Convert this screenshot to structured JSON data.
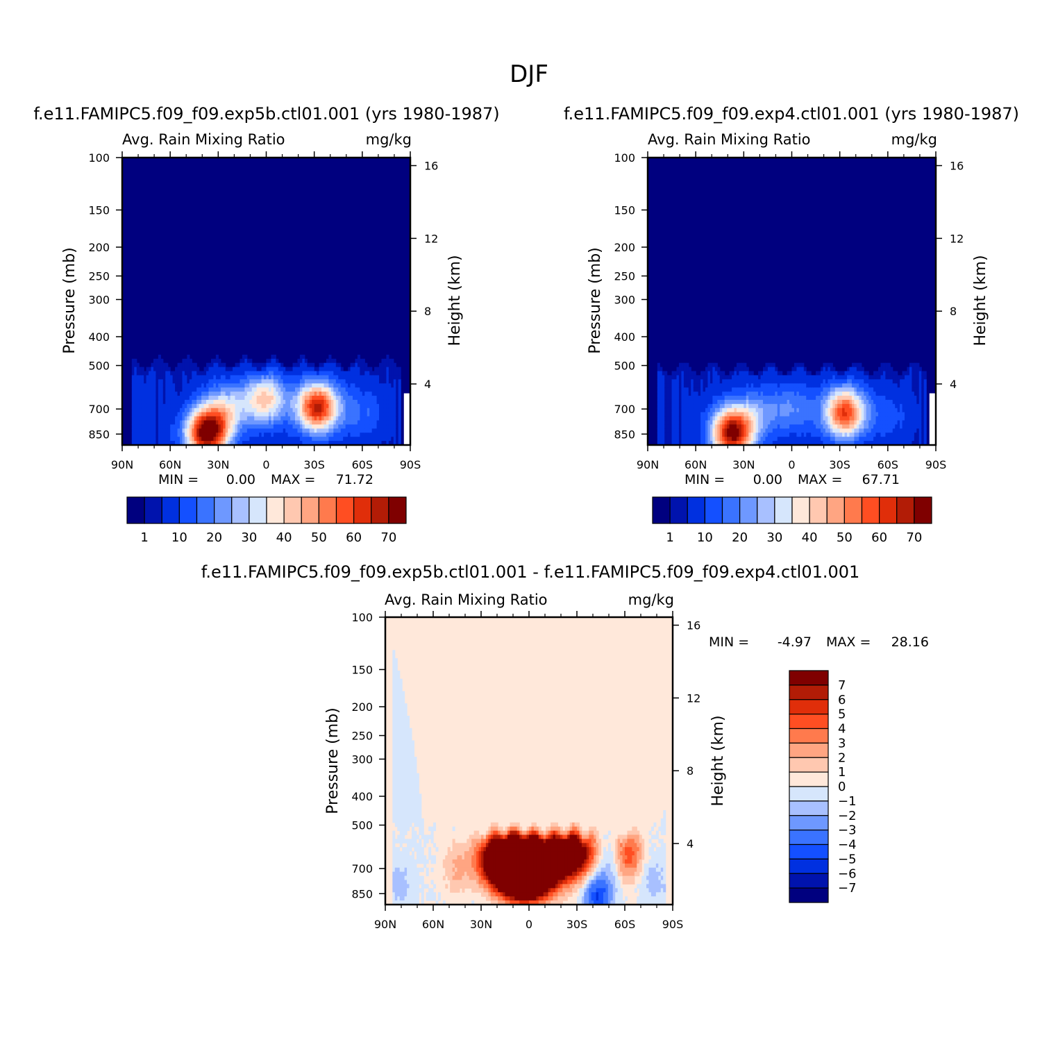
{
  "figure_title": "DJF",
  "chart_data": [
    {
      "type": "heatmap",
      "case_title": "f.e11.FAMIPC5.f09_f09.exp5b.ctl01.001 (yrs 1980-1987)",
      "variable": "Avg. Rain Mixing Ratio",
      "units": "mg/kg",
      "ylabel": "Pressure (mb)",
      "ylabel_right": "Height (km)",
      "x_ticks": [
        "90N",
        "60N",
        "30N",
        "0",
        "30S",
        "60S",
        "90S"
      ],
      "p_ticks": [
        100,
        150,
        200,
        250,
        300,
        400,
        500,
        700,
        850
      ],
      "z_ticks": [
        16,
        12,
        8,
        4
      ],
      "xlim": [
        90,
        -90
      ],
      "ylim_mb": [
        100,
        925
      ],
      "y_scale": "log",
      "stats": {
        "min_label": "MIN =",
        "min": "0.00",
        "max_label": "MAX =",
        "max": "71.72"
      },
      "contour_levels": [
        1,
        5,
        10,
        15,
        20,
        25,
        30,
        35,
        40,
        45,
        50,
        55,
        60,
        65,
        70
      ],
      "colorbar_labels": [
        "1",
        "10",
        "20",
        "30",
        "40",
        "50",
        "60",
        "70"
      ],
      "cloud_top_mb": 490,
      "features": [
        {
          "lat": 37,
          "p": 840,
          "peak": 71.7
        },
        {
          "lat": -32,
          "p": 690,
          "peak": 62
        },
        {
          "lat": 1,
          "p": 650,
          "peak": 38
        },
        {
          "lat": 25,
          "p": 700,
          "peak": 25
        },
        {
          "lat": -60,
          "p": 720,
          "peak": 10
        }
      ]
    },
    {
      "type": "heatmap",
      "case_title": "f.e11.FAMIPC5.f09_f09.exp4.ctl01.001 (yrs 1980-1987)",
      "variable": "Avg. Rain Mixing Ratio",
      "units": "mg/kg",
      "ylabel": "Pressure (mb)",
      "ylabel_right": "Height (km)",
      "x_ticks": [
        "90N",
        "60N",
        "30N",
        "0",
        "30S",
        "60S",
        "90S"
      ],
      "p_ticks": [
        100,
        150,
        200,
        250,
        300,
        400,
        500,
        700,
        850
      ],
      "z_ticks": [
        16,
        12,
        8,
        4
      ],
      "xlim": [
        90,
        -90
      ],
      "ylim_mb": [
        100,
        925
      ],
      "y_scale": "log",
      "stats": {
        "min_label": "MIN =",
        "min": "0.00",
        "max_label": "MAX =",
        "max": "67.71"
      },
      "contour_levels": [
        1,
        5,
        10,
        15,
        20,
        25,
        30,
        35,
        40,
        45,
        50,
        55,
        60,
        65,
        70
      ],
      "colorbar_labels": [
        "1",
        "10",
        "20",
        "30",
        "40",
        "50",
        "60",
        "70"
      ],
      "cloud_top_mb": 510,
      "features": [
        {
          "lat": 37,
          "p": 840,
          "peak": 67.7
        },
        {
          "lat": -33,
          "p": 720,
          "peak": 55
        },
        {
          "lat": 0,
          "p": 700,
          "peak": 15
        },
        {
          "lat": 22,
          "p": 720,
          "peak": 15
        },
        {
          "lat": -60,
          "p": 740,
          "peak": 8
        }
      ]
    },
    {
      "type": "heatmap",
      "case_title": "f.e11.FAMIPC5.f09_f09.exp5b.ctl01.001 - f.e11.FAMIPC5.f09_f09.exp4.ctl01.001",
      "variable": "Avg. Rain Mixing Ratio",
      "units": "mg/kg",
      "ylabel": "Pressure (mb)",
      "ylabel_right": "Height (km)",
      "x_ticks": [
        "90N",
        "60N",
        "30N",
        "0",
        "30S",
        "60S",
        "90S"
      ],
      "p_ticks": [
        100,
        150,
        200,
        250,
        300,
        400,
        500,
        700,
        850
      ],
      "z_ticks": [
        16,
        12,
        8,
        4
      ],
      "xlim": [
        90,
        -90
      ],
      "ylim_mb": [
        100,
        925
      ],
      "y_scale": "log",
      "stats": {
        "min_label": "MIN =",
        "min": "-4.97",
        "max_label": "MAX =",
        "max": "28.16"
      },
      "contour_levels": [
        -7,
        -6,
        -5,
        -4,
        -3,
        -2,
        -1,
        0,
        1,
        2,
        3,
        4,
        5,
        6,
        7
      ],
      "colorbar_labels": [
        "7",
        "6",
        "5",
        "4",
        "3",
        "2",
        "1",
        "0",
        "-1",
        "-2",
        "-3",
        "-4",
        "-5",
        "-6",
        "-7"
      ],
      "features": [
        {
          "lat": 2,
          "p": 700,
          "peak": 28.2
        },
        {
          "lat": 15,
          "p": 640,
          "peak": 12
        },
        {
          "lat": -25,
          "p": 620,
          "peak": 12
        },
        {
          "lat": -62,
          "p": 620,
          "peak": 5
        },
        {
          "lat": 45,
          "p": 700,
          "peak": 2
        },
        {
          "lat": -43,
          "p": 860,
          "peak": -5.0
        },
        {
          "lat": -50,
          "p": 640,
          "peak": -2
        },
        {
          "lat": 82,
          "p": 780,
          "peak": -1.5
        },
        {
          "lat": -78,
          "p": 770,
          "peak": -1.5
        }
      ]
    }
  ],
  "colors": {
    "seq": [
      "#00007f",
      "#0013ad",
      "#0030e0",
      "#1450ff",
      "#3a73ff",
      "#6e98ff",
      "#a8c0ff",
      "#d6e6fc",
      "#ffe8da",
      "#ffc8b0",
      "#ffa582",
      "#ff7a4d",
      "#ff4e22",
      "#e02e0a",
      "#b21c06",
      "#7f0000"
    ],
    "div": [
      "#00007f",
      "#0013ad",
      "#0030e0",
      "#1450ff",
      "#3a73ff",
      "#6e98ff",
      "#a8c0ff",
      "#d6e6fc",
      "#ffe8da",
      "#ffc8b0",
      "#ffa582",
      "#ff7a4d",
      "#ff4e22",
      "#e02e0a",
      "#b21c06",
      "#7f0000"
    ]
  }
}
